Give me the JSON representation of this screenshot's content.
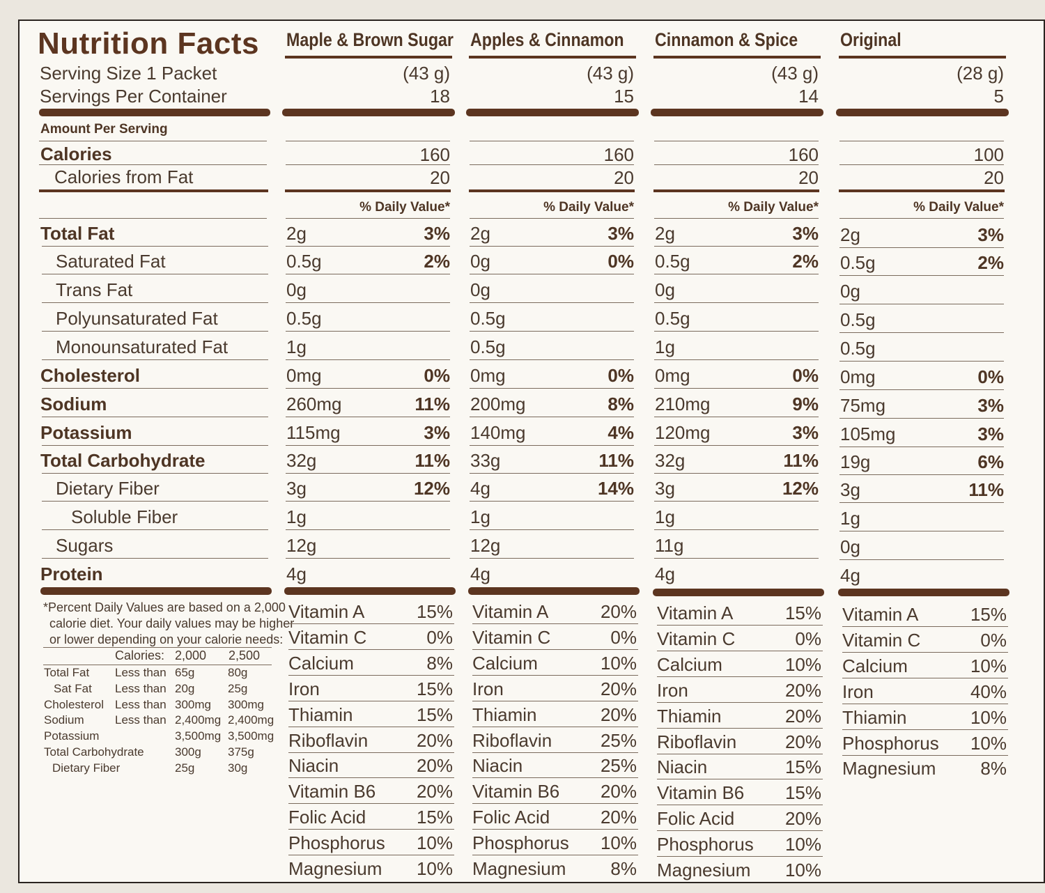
{
  "title": "Nutrition Facts",
  "serving_size_label": "Serving Size 1 Packet",
  "servings_per_container_label": "Servings Per Container",
  "amount_per_serving": "Amount Per Serving",
  "daily_value_header": "% Daily Value*",
  "nutrient_labels": [
    "Calories",
    "Calories from Fat",
    "Total Fat",
    "Saturated Fat",
    "Trans Fat",
    "Polyunsaturated Fat",
    "Monounsaturated Fat",
    "Cholesterol",
    "Sodium",
    "Potassium",
    "Total Carbohydrate",
    "Dietary Fiber",
    "Soluble Fiber",
    "Sugars",
    "Protein"
  ],
  "columns": [
    {
      "name": "Maple & Brown Sugar",
      "serving_size": "(43 g)",
      "servings": "18",
      "calories": "160",
      "calories_from_fat": "20",
      "nutrients": [
        {
          "amount": "2g",
          "dv": "3%"
        },
        {
          "amount": "0.5g",
          "dv": "2%"
        },
        {
          "amount": "0g",
          "dv": ""
        },
        {
          "amount": "0.5g",
          "dv": ""
        },
        {
          "amount": "1g",
          "dv": ""
        },
        {
          "amount": "0mg",
          "dv": "0%"
        },
        {
          "amount": "260mg",
          "dv": "11%"
        },
        {
          "amount": "115mg",
          "dv": "3%"
        },
        {
          "amount": "32g",
          "dv": "11%"
        },
        {
          "amount": "3g",
          "dv": "12%"
        },
        {
          "amount": "1g",
          "dv": ""
        },
        {
          "amount": "12g",
          "dv": ""
        },
        {
          "amount": "4g",
          "dv": ""
        }
      ],
      "vitamins": [
        {
          "name": "Vitamin A",
          "pct": "15%"
        },
        {
          "name": "Vitamin C",
          "pct": "0%"
        },
        {
          "name": "Calcium",
          "pct": "8%"
        },
        {
          "name": "Iron",
          "pct": "15%"
        },
        {
          "name": "Thiamin",
          "pct": "15%"
        },
        {
          "name": "Riboflavin",
          "pct": "20%"
        },
        {
          "name": "Niacin",
          "pct": "20%"
        },
        {
          "name": "Vitamin B6",
          "pct": "20%"
        },
        {
          "name": "Folic Acid",
          "pct": "15%"
        },
        {
          "name": "Phosphorus",
          "pct": "10%"
        },
        {
          "name": "Magnesium",
          "pct": "10%"
        }
      ]
    },
    {
      "name": "Apples & Cinnamon",
      "serving_size": "(43 g)",
      "servings": "15",
      "calories": "160",
      "calories_from_fat": "20",
      "nutrients": [
        {
          "amount": "2g",
          "dv": "3%"
        },
        {
          "amount": "0g",
          "dv": "0%"
        },
        {
          "amount": "0g",
          "dv": ""
        },
        {
          "amount": "0.5g",
          "dv": ""
        },
        {
          "amount": "0.5g",
          "dv": ""
        },
        {
          "amount": "0mg",
          "dv": "0%"
        },
        {
          "amount": "200mg",
          "dv": "8%"
        },
        {
          "amount": "140mg",
          "dv": "4%"
        },
        {
          "amount": "33g",
          "dv": "11%"
        },
        {
          "amount": "4g",
          "dv": "14%"
        },
        {
          "amount": "1g",
          "dv": ""
        },
        {
          "amount": "12g",
          "dv": ""
        },
        {
          "amount": "4g",
          "dv": ""
        }
      ],
      "vitamins": [
        {
          "name": "Vitamin A",
          "pct": "20%"
        },
        {
          "name": "Vitamin C",
          "pct": "0%"
        },
        {
          "name": "Calcium",
          "pct": "10%"
        },
        {
          "name": "Iron",
          "pct": "20%"
        },
        {
          "name": "Thiamin",
          "pct": "20%"
        },
        {
          "name": "Riboflavin",
          "pct": "25%"
        },
        {
          "name": "Niacin",
          "pct": "25%"
        },
        {
          "name": "Vitamin B6",
          "pct": "20%"
        },
        {
          "name": "Folic Acid",
          "pct": "20%"
        },
        {
          "name": "Phosphorus",
          "pct": "10%"
        },
        {
          "name": "Magnesium",
          "pct": "8%"
        }
      ]
    },
    {
      "name": "Cinnamon & Spice",
      "serving_size": "(43 g)",
      "servings": "14",
      "calories": "160",
      "calories_from_fat": "20",
      "nutrients": [
        {
          "amount": "2g",
          "dv": "3%"
        },
        {
          "amount": "0.5g",
          "dv": "2%"
        },
        {
          "amount": "0g",
          "dv": ""
        },
        {
          "amount": "0.5g",
          "dv": ""
        },
        {
          "amount": "1g",
          "dv": ""
        },
        {
          "amount": "0mg",
          "dv": "0%"
        },
        {
          "amount": "210mg",
          "dv": "9%"
        },
        {
          "amount": "120mg",
          "dv": "3%"
        },
        {
          "amount": "32g",
          "dv": "11%"
        },
        {
          "amount": "3g",
          "dv": "12%"
        },
        {
          "amount": "1g",
          "dv": ""
        },
        {
          "amount": "11g",
          "dv": ""
        },
        {
          "amount": "4g",
          "dv": ""
        }
      ],
      "vitamins": [
        {
          "name": "Vitamin A",
          "pct": "15%"
        },
        {
          "name": "Vitamin C",
          "pct": "0%"
        },
        {
          "name": "Calcium",
          "pct": "10%"
        },
        {
          "name": "Iron",
          "pct": "20%"
        },
        {
          "name": "Thiamin",
          "pct": "20%"
        },
        {
          "name": "Riboflavin",
          "pct": "20%"
        },
        {
          "name": "Niacin",
          "pct": "15%"
        },
        {
          "name": "Vitamin B6",
          "pct": "15%"
        },
        {
          "name": "Folic Acid",
          "pct": "20%"
        },
        {
          "name": "Phosphorus",
          "pct": "10%"
        },
        {
          "name": "Magnesium",
          "pct": "10%"
        }
      ]
    },
    {
      "name": "Original",
      "serving_size": "(28 g)",
      "servings": "5",
      "calories": "100",
      "calories_from_fat": "20",
      "nutrients": [
        {
          "amount": "2g",
          "dv": "3%"
        },
        {
          "amount": "0.5g",
          "dv": "2%"
        },
        {
          "amount": "0g",
          "dv": ""
        },
        {
          "amount": "0.5g",
          "dv": ""
        },
        {
          "amount": "0.5g",
          "dv": ""
        },
        {
          "amount": "0mg",
          "dv": "0%"
        },
        {
          "amount": "75mg",
          "dv": "3%"
        },
        {
          "amount": "105mg",
          "dv": "3%"
        },
        {
          "amount": "19g",
          "dv": "6%"
        },
        {
          "amount": "3g",
          "dv": "11%"
        },
        {
          "amount": "1g",
          "dv": ""
        },
        {
          "amount": "0g",
          "dv": ""
        },
        {
          "amount": "4g",
          "dv": ""
        }
      ],
      "vitamins": [
        {
          "name": "Vitamin A",
          "pct": "15%"
        },
        {
          "name": "Vitamin C",
          "pct": "0%"
        },
        {
          "name": "Calcium",
          "pct": "10%"
        },
        {
          "name": "Iron",
          "pct": "40%"
        },
        {
          "name": "Thiamin",
          "pct": "10%"
        },
        {
          "name": "Phosphorus",
          "pct": "10%"
        },
        {
          "name": "Magnesium",
          "pct": "8%"
        }
      ]
    }
  ],
  "footnote": {
    "lines": [
      "*Percent Daily Values are based on a 2,000",
      "calorie diet. Your daily values may be higher",
      "or lower depending on your calorie needs:"
    ],
    "header": {
      "label": "Calories:",
      "a": "2,000",
      "b": "2,500"
    },
    "rows": [
      {
        "name": "Total Fat",
        "qual": "Less than",
        "a": "65g",
        "b": "80g"
      },
      {
        "name": "Sat Fat",
        "qual": "Less than",
        "a": "20g",
        "b": "25g"
      },
      {
        "name": "Cholesterol",
        "qual": "Less than",
        "a": "300mg",
        "b": "300mg"
      },
      {
        "name": "Sodium",
        "qual": "Less than",
        "a": "2,400mg",
        "b": "2,400mg"
      },
      {
        "name": "Potassium",
        "qual": "",
        "a": "3,500mg",
        "b": "3,500mg"
      },
      {
        "name": "Total Carbohydrate",
        "qual": "",
        "a": "300g",
        "b": "375g"
      },
      {
        "name": "Dietary Fiber",
        "qual": "",
        "a": "25g",
        "b": "30g"
      }
    ]
  },
  "colors": {
    "brown": "#5c3520",
    "text": "#4a3a2e",
    "paper": "#faf8f3"
  }
}
